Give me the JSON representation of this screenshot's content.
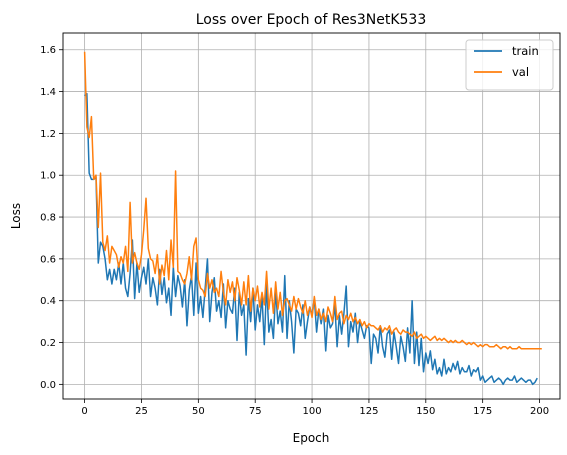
{
  "chart_data": {
    "type": "line",
    "title": "Loss over Epoch of Res3NetK533",
    "xlabel": "Epoch",
    "ylabel": "Loss",
    "xlim": [
      -9.5,
      209
    ],
    "ylim": [
      -0.07,
      1.68
    ],
    "xticks": [
      "0",
      "25",
      "50",
      "75",
      "100",
      "125",
      "150",
      "175",
      "200"
    ],
    "yticks": [
      "0.0",
      "0.2",
      "0.4",
      "0.6",
      "0.8",
      "1.0",
      "1.2",
      "1.4",
      "1.6"
    ],
    "grid": true,
    "legend_position": "top-right",
    "series": [
      {
        "name": "train",
        "color": "#1f77b4",
        "values": [
          1.38,
          1.39,
          1.01,
          0.98,
          0.98,
          0.99,
          0.58,
          0.68,
          0.66,
          0.6,
          0.5,
          0.55,
          0.48,
          0.55,
          0.5,
          0.58,
          0.48,
          0.58,
          0.46,
          0.42,
          0.53,
          0.69,
          0.41,
          0.58,
          0.44,
          0.51,
          0.56,
          0.48,
          0.6,
          0.42,
          0.51,
          0.46,
          0.38,
          0.55,
          0.43,
          0.51,
          0.39,
          0.46,
          0.33,
          0.56,
          0.42,
          0.52,
          0.47,
          0.37,
          0.5,
          0.28,
          0.45,
          0.52,
          0.33,
          0.58,
          0.34,
          0.42,
          0.32,
          0.46,
          0.6,
          0.3,
          0.44,
          0.51,
          0.35,
          0.4,
          0.32,
          0.48,
          0.27,
          0.4,
          0.36,
          0.34,
          0.46,
          0.21,
          0.44,
          0.33,
          0.38,
          0.14,
          0.41,
          0.3,
          0.46,
          0.26,
          0.38,
          0.3,
          0.42,
          0.19,
          0.48,
          0.25,
          0.31,
          0.22,
          0.45,
          0.29,
          0.35,
          0.25,
          0.52,
          0.22,
          0.4,
          0.3,
          0.15,
          0.36,
          0.34,
          0.28,
          0.38,
          0.22,
          0.3,
          0.37,
          0.33,
          0.41,
          0.25,
          0.36,
          0.29,
          0.36,
          0.16,
          0.33,
          0.27,
          0.29,
          0.38,
          0.18,
          0.33,
          0.24,
          0.34,
          0.47,
          0.18,
          0.3,
          0.25,
          0.34,
          0.2,
          0.3,
          0.26,
          0.22,
          0.28,
          0.27,
          0.1,
          0.24,
          0.22,
          0.15,
          0.28,
          0.18,
          0.13,
          0.24,
          0.26,
          0.12,
          0.25,
          0.18,
          0.1,
          0.23,
          0.18,
          0.11,
          0.27,
          0.15,
          0.4,
          0.1,
          0.25,
          0.09,
          0.22,
          0.06,
          0.15,
          0.1,
          0.16,
          0.07,
          0.12,
          0.05,
          0.08,
          0.04,
          0.12,
          0.05,
          0.08,
          0.06,
          0.1,
          0.07,
          0.11,
          0.05,
          0.08,
          0.06,
          0.06,
          0.09,
          0.04,
          0.07,
          0.06,
          0.08,
          0.02,
          0.04,
          0.01,
          0.02,
          0.03,
          0.04,
          0.01,
          0.02,
          0.03,
          0.02,
          0.0,
          0.02,
          0.03,
          0.02,
          0.02,
          0.04,
          0.01,
          0.02,
          0.03,
          0.02,
          0.01,
          0.02,
          0.02,
          0.0,
          0.01,
          0.03
        ],
        "label": "train"
      },
      {
        "name": "val",
        "color": "#ff7f0e",
        "values": [
          1.59,
          1.23,
          1.18,
          1.28,
          0.98,
          1.0,
          0.75,
          1.01,
          0.68,
          0.64,
          0.71,
          0.58,
          0.66,
          0.64,
          0.62,
          0.56,
          0.61,
          0.58,
          0.66,
          0.54,
          0.87,
          0.58,
          0.63,
          0.58,
          0.55,
          0.62,
          0.74,
          0.89,
          0.65,
          0.6,
          0.59,
          0.53,
          0.62,
          0.48,
          0.57,
          0.52,
          0.64,
          0.5,
          0.69,
          0.56,
          1.02,
          0.54,
          0.53,
          0.5,
          0.48,
          0.53,
          0.61,
          0.5,
          0.66,
          0.7,
          0.5,
          0.46,
          0.45,
          0.42,
          0.53,
          0.46,
          0.5,
          0.44,
          0.46,
          0.42,
          0.54,
          0.44,
          0.38,
          0.5,
          0.44,
          0.49,
          0.4,
          0.51,
          0.45,
          0.38,
          0.49,
          0.38,
          0.52,
          0.35,
          0.46,
          0.4,
          0.47,
          0.37,
          0.44,
          0.38,
          0.54,
          0.36,
          0.46,
          0.34,
          0.49,
          0.36,
          0.44,
          0.33,
          0.4,
          0.41,
          0.38,
          0.35,
          0.42,
          0.36,
          0.41,
          0.37,
          0.34,
          0.4,
          0.33,
          0.37,
          0.32,
          0.42,
          0.33,
          0.36,
          0.31,
          0.34,
          0.3,
          0.37,
          0.34,
          0.3,
          0.42,
          0.31,
          0.34,
          0.35,
          0.29,
          0.33,
          0.31,
          0.34,
          0.3,
          0.32,
          0.29,
          0.31,
          0.28,
          0.3,
          0.27,
          0.29,
          0.28,
          0.28,
          0.27,
          0.26,
          0.28,
          0.25,
          0.27,
          0.26,
          0.28,
          0.24,
          0.26,
          0.27,
          0.25,
          0.24,
          0.26,
          0.25,
          0.25,
          0.24,
          0.23,
          0.25,
          0.22,
          0.23,
          0.24,
          0.22,
          0.23,
          0.22,
          0.21,
          0.22,
          0.23,
          0.21,
          0.22,
          0.21,
          0.22,
          0.21,
          0.2,
          0.21,
          0.2,
          0.21,
          0.2,
          0.2,
          0.21,
          0.2,
          0.19,
          0.2,
          0.19,
          0.2,
          0.19,
          0.18,
          0.19,
          0.18,
          0.19,
          0.19,
          0.18,
          0.18,
          0.18,
          0.19,
          0.18,
          0.17,
          0.18,
          0.18,
          0.17,
          0.18,
          0.17,
          0.17,
          0.17,
          0.18,
          0.17,
          0.17,
          0.17,
          0.17,
          0.17,
          0.17,
          0.17,
          0.17,
          0.17,
          0.17
        ],
        "label": "val"
      }
    ]
  }
}
